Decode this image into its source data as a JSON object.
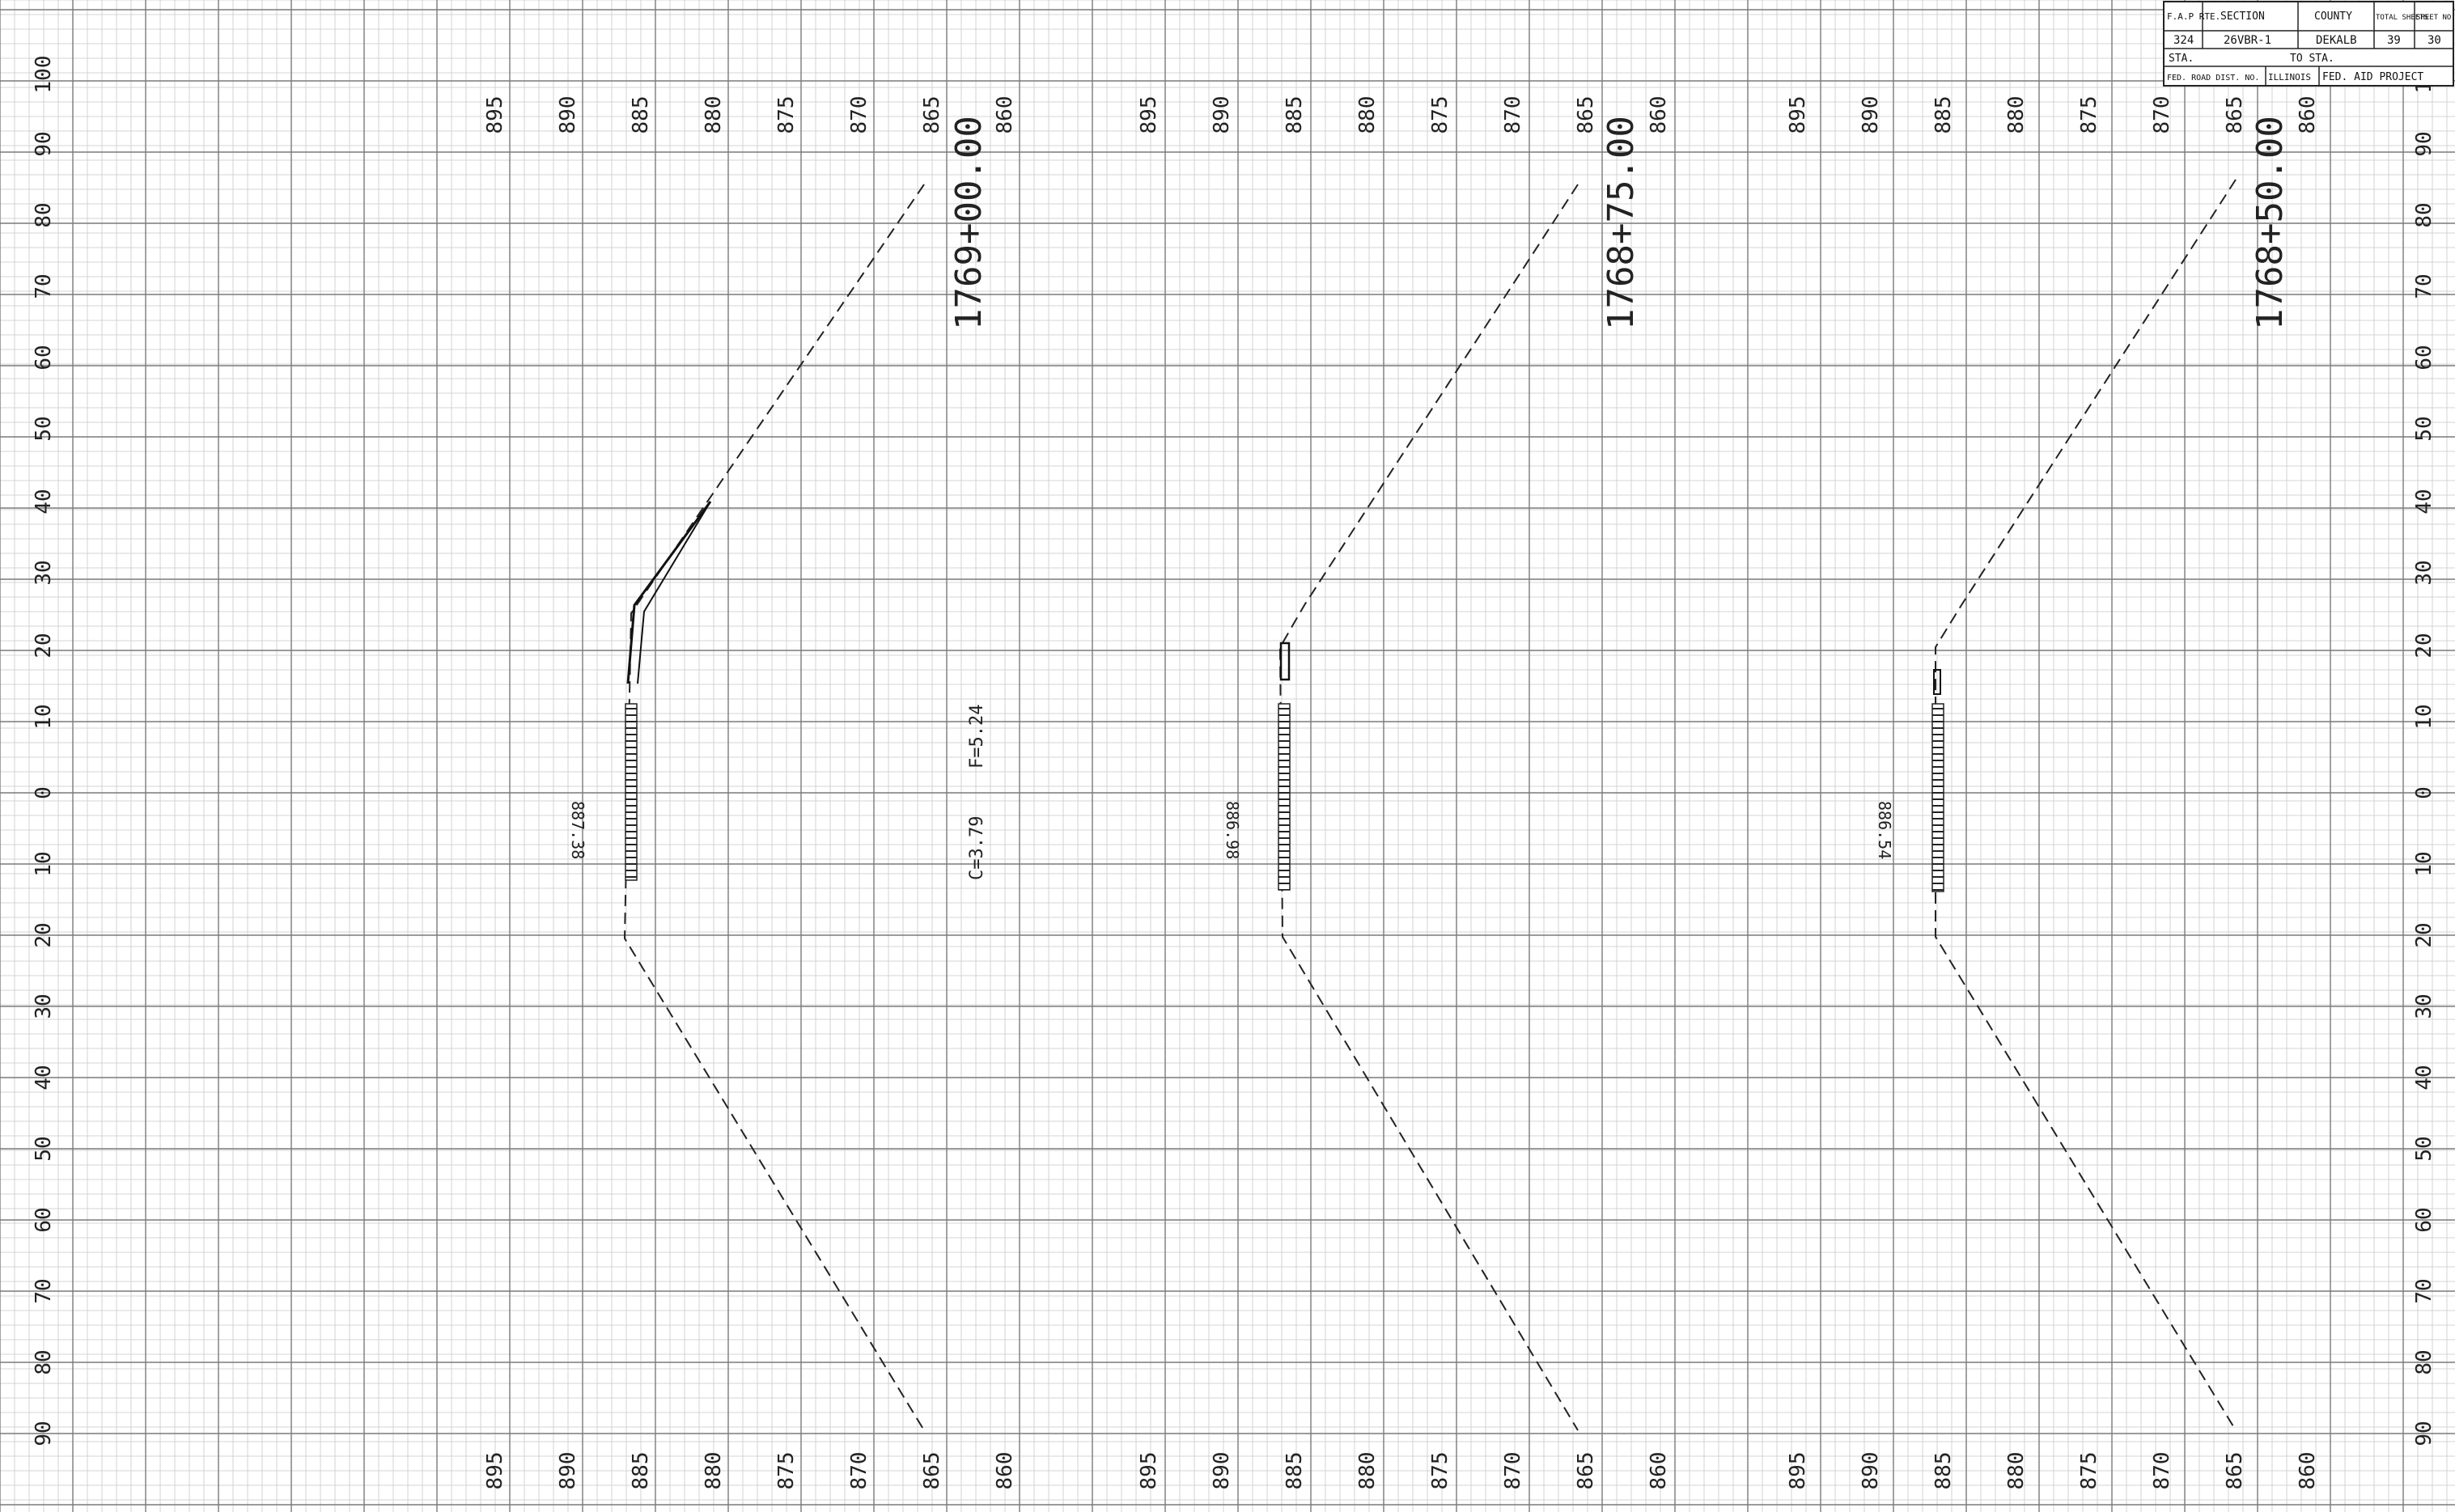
{
  "title_block": {
    "headers": [
      "F.A.P RTE.",
      "SECTION",
      "COUNTY",
      "TOTAL SHEETS",
      "SHEET NO."
    ],
    "values": [
      "324",
      "26VBR-1",
      "DEKALB",
      "39",
      "30"
    ],
    "sta_label": "STA.",
    "to_sta_label": "TO STA.",
    "fed_road_dist": "FED. ROAD DIST. NO.",
    "state": "ILLINOIS",
    "fed_aid_project": "FED. AID PROJECT"
  },
  "offset_labels": [
    "100",
    "90",
    "80",
    "70",
    "60",
    "50",
    "40",
    "30",
    "20",
    "10",
    "0",
    "10",
    "20",
    "30",
    "40",
    "50",
    "60",
    "70",
    "80",
    "90"
  ],
  "elevation_labels": [
    "895",
    "890",
    "885",
    "880",
    "875",
    "870",
    "865",
    "860"
  ],
  "sections": [
    {
      "station": "1769+00.00",
      "elevation": "887.38",
      "fill": "F=5.24",
      "cut": "C=3.79"
    },
    {
      "station": "1768+75.00",
      "elevation": "886.98"
    },
    {
      "station": "1768+50.00",
      "elevation": "886.54"
    }
  ],
  "colors": {
    "paper": "#ffffff",
    "fine_grid": "#c8c8c8",
    "major_grid": "#7a7a7a",
    "ink": "#222222"
  }
}
